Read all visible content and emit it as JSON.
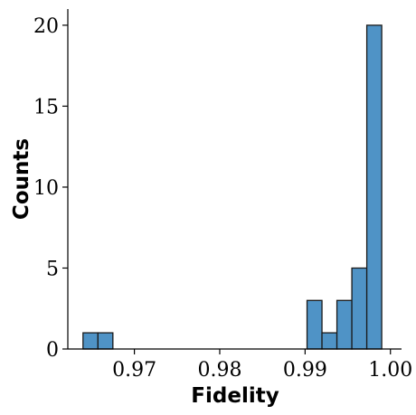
{
  "chart_data": {
    "type": "bar",
    "title": "",
    "xlabel": "Fidelity",
    "ylabel": "Counts",
    "bar_color": "#4f93c6",
    "edge_color": "#1a1a1a",
    "xlim": [
      0.9622,
      1.0013
    ],
    "ylim": [
      0,
      21
    ],
    "grid": false,
    "legend": "none",
    "bin_width": 0.00175,
    "x_ticks": [
      {
        "value": 0.97,
        "label": "0.97"
      },
      {
        "value": 0.98,
        "label": "0.98"
      },
      {
        "value": 0.99,
        "label": "0.99"
      },
      {
        "value": 1.0,
        "label": "1.00"
      }
    ],
    "y_ticks": [
      {
        "value": 0,
        "label": "0"
      },
      {
        "value": 5,
        "label": "5"
      },
      {
        "value": 10,
        "label": "10"
      },
      {
        "value": 15,
        "label": "15"
      },
      {
        "value": 20,
        "label": "20"
      }
    ],
    "bins": [
      {
        "x0": 0.96398,
        "x1": 0.96573,
        "count": 1
      },
      {
        "x0": 0.96573,
        "x1": 0.96748,
        "count": 1
      },
      {
        "x0": 0.99023,
        "x1": 0.99198,
        "count": 3
      },
      {
        "x0": 0.99198,
        "x1": 0.99373,
        "count": 1
      },
      {
        "x0": 0.99373,
        "x1": 0.99548,
        "count": 3
      },
      {
        "x0": 0.99548,
        "x1": 0.99723,
        "count": 5
      },
      {
        "x0": 0.99723,
        "x1": 0.99898,
        "count": 20
      }
    ]
  }
}
